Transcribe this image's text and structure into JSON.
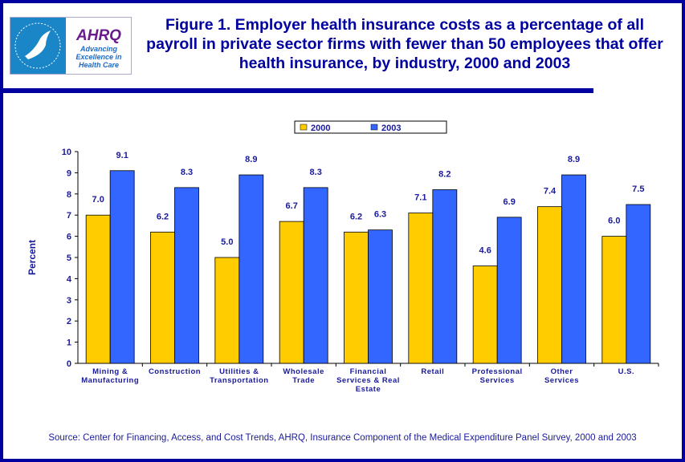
{
  "header": {
    "title": "Figure 1. Employer health insurance costs as a percentage of all payroll in private sector firms with fewer than 50 employees that offer health insurance, by industry, 2000 and 2003",
    "logo_text": "AHRQ Advancing Excellence in Health Care",
    "seal_text": "Department of Health & Human Services USA"
  },
  "source": "Source: Center for Financing, Access, and Cost Trends, AHRQ, Insurance Component of the Medical Expenditure Panel Survey, 2000 and 2003",
  "chart_data": {
    "type": "bar",
    "title": "",
    "ylabel": "Percent",
    "xlabel": "",
    "ylim": [
      0,
      10
    ],
    "yticks": [
      0,
      1,
      2,
      3,
      4,
      5,
      6,
      7,
      8,
      9,
      10
    ],
    "grid": false,
    "legend": "top-center",
    "categories": [
      [
        "Mining &",
        "Manufacturing"
      ],
      [
        "Construction"
      ],
      [
        "Utilities &",
        "Transportation"
      ],
      [
        "Wholesale",
        "Trade"
      ],
      [
        "Financial",
        "Services & Real",
        "Estate"
      ],
      [
        "Retail"
      ],
      [
        "Professional",
        "Services"
      ],
      [
        "Other",
        "Services"
      ],
      [
        "U.S."
      ]
    ],
    "series": [
      {
        "name": "2000",
        "color": "#FFCC00",
        "values": [
          7.0,
          6.2,
          5.0,
          6.7,
          6.2,
          7.1,
          4.6,
          7.4,
          6.0
        ]
      },
      {
        "name": "2003",
        "color": "#3366FF",
        "values": [
          9.1,
          8.3,
          8.9,
          8.3,
          6.3,
          8.2,
          6.9,
          8.9,
          7.5
        ]
      }
    ]
  }
}
